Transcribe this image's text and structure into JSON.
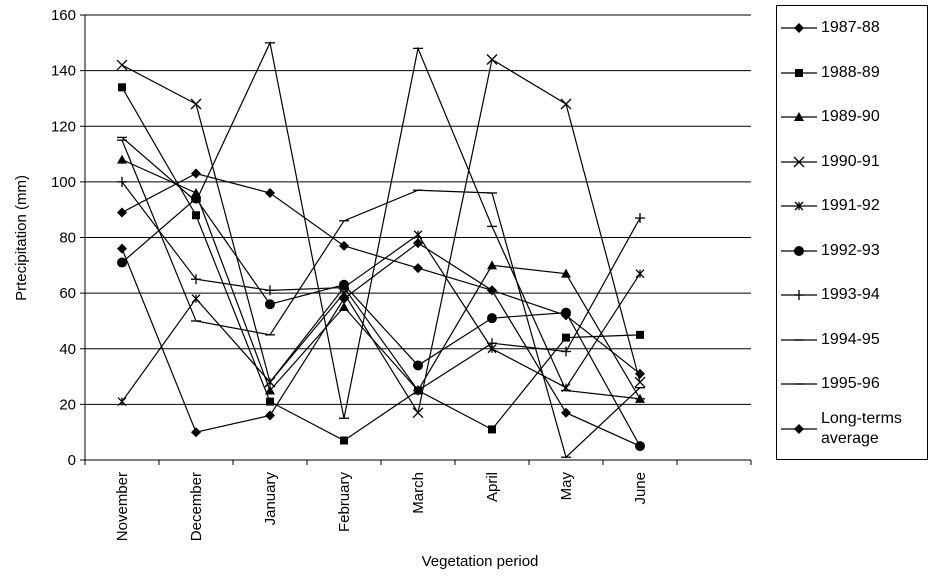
{
  "chart_data": {
    "type": "line",
    "x_label": "Vegetation period",
    "y_label": "Prtecipitation (mm)",
    "categories": [
      "November",
      "December",
      "January",
      "February",
      "March",
      "April",
      "May",
      "June",
      null
    ],
    "ylim": [
      0,
      160
    ],
    "yticks": [
      0,
      20,
      40,
      60,
      80,
      100,
      120,
      140,
      160
    ],
    "grid": true,
    "series": [
      {
        "name": "1987-88",
        "color": "#000000",
        "marker": "diamond",
        "values": [
          76,
          10,
          16,
          58,
          78,
          61,
          17,
          5,
          null
        ]
      },
      {
        "name": "1988-89",
        "color": "#000000",
        "marker": "square",
        "values": [
          134,
          88,
          21,
          7,
          25,
          11,
          44,
          45,
          null
        ]
      },
      {
        "name": "1989-90",
        "color": "#000000",
        "marker": "triangle",
        "values": [
          108,
          96,
          25,
          55,
          25,
          70,
          67,
          22,
          null
        ]
      },
      {
        "name": "1990-91",
        "color": "#000000",
        "marker": "x",
        "values": [
          142,
          128,
          28,
          60,
          17,
          144,
          128,
          28,
          null
        ]
      },
      {
        "name": "1991-92",
        "color": "#000000",
        "marker": "star",
        "values": [
          21,
          58,
          28,
          62,
          81,
          40,
          26,
          67,
          null
        ]
      },
      {
        "name": "1992-93",
        "color": "#000000",
        "marker": "circle",
        "values": [
          71,
          94,
          56,
          63,
          34,
          51,
          53,
          5,
          null
        ]
      },
      {
        "name": "1993-94",
        "color": "#000000",
        "marker": "plus",
        "values": [
          100,
          65,
          61,
          62,
          25,
          42,
          39,
          87,
          null
        ]
      },
      {
        "name": "1994-95",
        "color": "#000000",
        "marker": "dash",
        "values": [
          115,
          50,
          45,
          86,
          97,
          96,
          1,
          26,
          null
        ]
      },
      {
        "name": "1995-96",
        "color": "#000000",
        "marker": "dash",
        "values": [
          116,
          93,
          150,
          15,
          148,
          84,
          25,
          22,
          null
        ]
      },
      {
        "name": "Long-terms average",
        "color": "#000000",
        "marker": "diamond",
        "values": [
          89,
          103,
          96,
          77,
          69,
          61,
          52,
          31,
          null
        ]
      }
    ]
  }
}
